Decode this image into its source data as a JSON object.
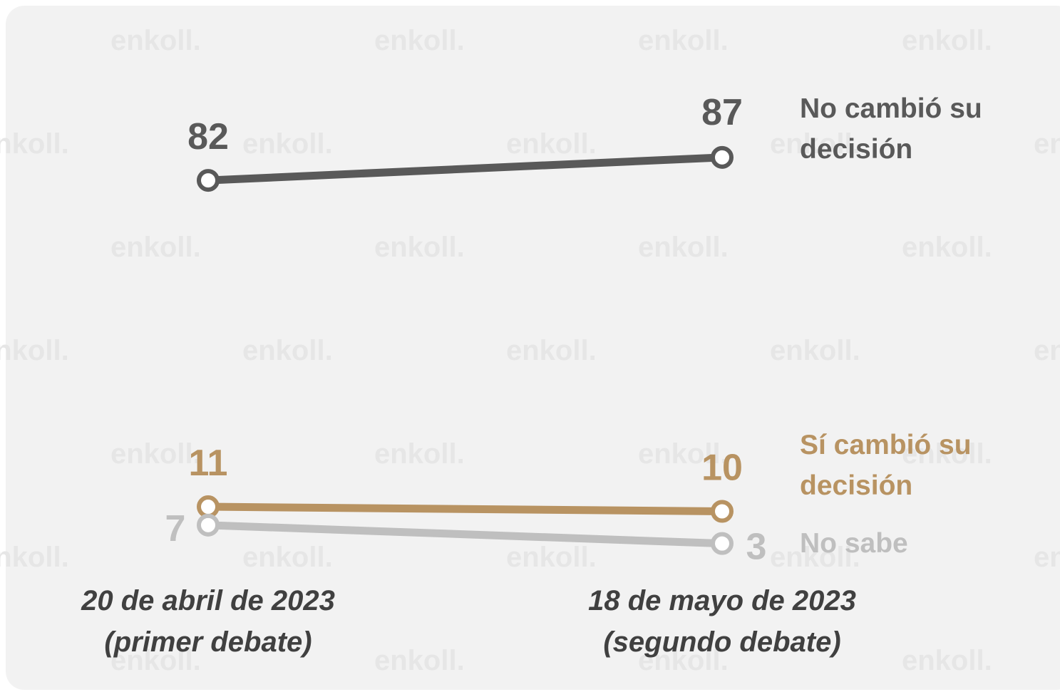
{
  "chart_data": {
    "type": "line",
    "watermark": "enkoll.",
    "categories": [
      "20 de abril de 2023\n(primer debate)",
      "18 de mayo de 2023\n(segundo debate)"
    ],
    "series": [
      {
        "name": "No cambió su\ndecisión",
        "color": "#595959",
        "values": [
          82,
          87
        ]
      },
      {
        "name": "Sí cambió su\ndecisión",
        "color": "#b89362",
        "values": [
          11,
          10
        ]
      },
      {
        "name": "No sabe",
        "color": "#bfbfbf",
        "values": [
          7,
          3
        ]
      }
    ]
  }
}
